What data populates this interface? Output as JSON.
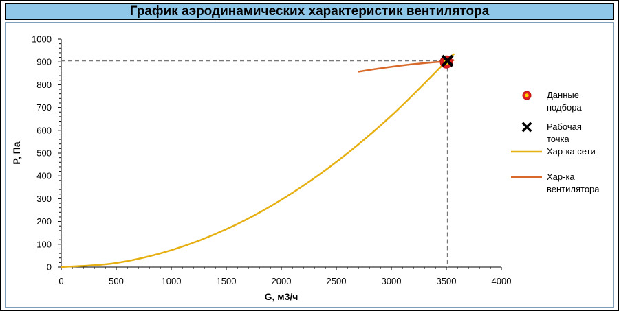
{
  "chart_data": {
    "type": "line",
    "title": "График аэродинамических характеристик вентилятора",
    "xlabel": "G, м3/ч",
    "ylabel": "P, Па",
    "xlim": [
      0,
      4000
    ],
    "ylim": [
      0,
      1000
    ],
    "x_ticks": [
      "0",
      "500",
      "1000",
      "1500",
      "2000",
      "2500",
      "3000",
      "3500",
      "4000"
    ],
    "y_ticks": [
      "0",
      "100",
      "200",
      "300",
      "400",
      "500",
      "600",
      "700",
      "800",
      "900",
      "1000"
    ],
    "series": [
      {
        "name": "Хар-ка сети",
        "color": "#e6b012",
        "points": [
          [
            0,
            0
          ],
          [
            500,
            18
          ],
          [
            1000,
            74
          ],
          [
            1500,
            166
          ],
          [
            2000,
            295
          ],
          [
            2500,
            461
          ],
          [
            3000,
            664
          ],
          [
            3500,
            903
          ],
          [
            3570,
            935
          ]
        ]
      },
      {
        "name": "Хар-ка вентилятора",
        "color": "#d9692a",
        "points": [
          [
            2700,
            857
          ],
          [
            2900,
            872
          ],
          [
            3100,
            885
          ],
          [
            3300,
            895
          ],
          [
            3500,
            903
          ],
          [
            3570,
            908
          ]
        ]
      }
    ],
    "markers": [
      {
        "name": "Данные подбора",
        "x": 3500,
        "y": 900,
        "color": "#e02020"
      },
      {
        "name": "Рабочая точка",
        "x": 3510,
        "y": 905,
        "color": "#000000"
      }
    ],
    "guide_point": {
      "x": 3510,
      "y": 905
    },
    "legend": [
      {
        "label_lines": [
          "Данные",
          "подбора"
        ],
        "symbol": "circle-marker"
      },
      {
        "label_lines": [
          "Рабочая",
          "точка"
        ],
        "symbol": "x-marker"
      },
      {
        "label_lines": [
          "Хар-ка сети"
        ],
        "symbol": "line",
        "color": "#e6b012"
      },
      {
        "label_lines": [
          "Хар-ка",
          "вентилятора"
        ],
        "symbol": "line",
        "color": "#d9692a"
      }
    ],
    "legend_position": "right",
    "grid": false
  }
}
